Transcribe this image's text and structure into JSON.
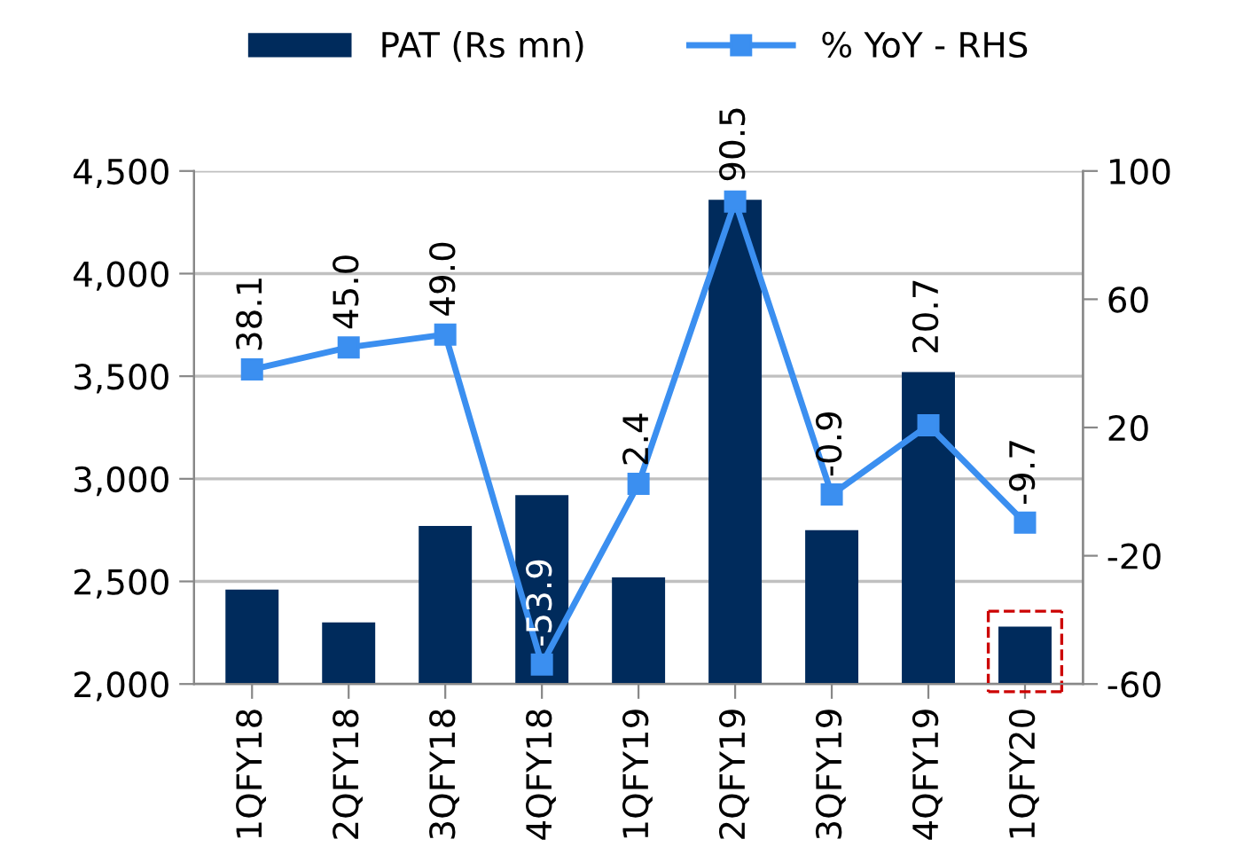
{
  "chart_data": {
    "type": "bar",
    "categories": [
      "1QFY18",
      "2QFY18",
      "3QFY18",
      "4QFY18",
      "1QFY19",
      "2QFY19",
      "3QFY19",
      "4QFY19",
      "1QFY20"
    ],
    "series": [
      {
        "name": "PAT (Rs mn)",
        "color": "#002b5c",
        "values": [
          2460,
          2300,
          2770,
          2920,
          2520,
          4360,
          2750,
          3520,
          2280
        ]
      },
      {
        "name": "% YoY - RHS",
        "type": "line",
        "axis": "y2",
        "color": "#3b8ff0",
        "marker": "square",
        "values": [
          38.1,
          45.0,
          49.0,
          -53.9,
          2.4,
          90.5,
          -0.9,
          20.7,
          -9.7
        ],
        "value_labels": [
          "38.1",
          "45.0",
          "49.0",
          "-53.9",
          "2.4",
          "90.5",
          "-0.9",
          "20.7",
          "-9.7"
        ]
      }
    ],
    "ylim": [
      2000,
      4500
    ],
    "yticks": [
      {
        "value": 2000,
        "label": "2,000"
      },
      {
        "value": 2500,
        "label": "2,500"
      },
      {
        "value": 3000,
        "label": "3,000"
      },
      {
        "value": 3500,
        "label": "3,500"
      },
      {
        "value": 4000,
        "label": "4,000"
      },
      {
        "value": 4500,
        "label": "4,500"
      }
    ],
    "y2lim": [
      -60,
      100
    ],
    "y2ticks": [
      -60,
      -20,
      20,
      60,
      100
    ],
    "grid": "y",
    "legend": "top"
  }
}
